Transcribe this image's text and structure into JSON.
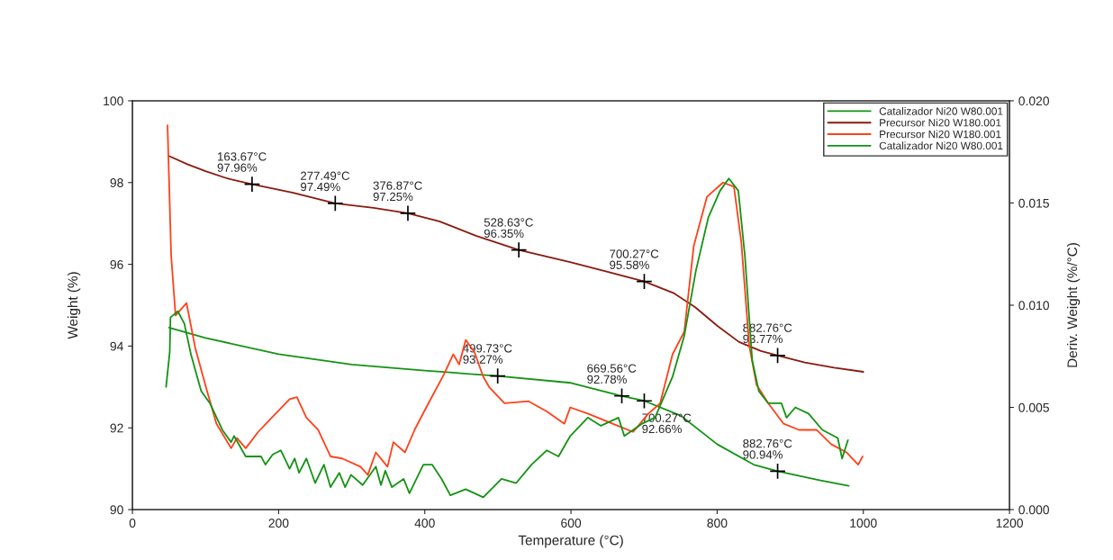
{
  "chart_data": {
    "type": "line",
    "xlabel": "Temperature (°C)",
    "ylabel": "Weight (%)",
    "y2label": "Deriv. Weight (%/°C)",
    "xlim": [
      0,
      1200
    ],
    "xticks": [
      0,
      200,
      400,
      600,
      800,
      1000,
      1200
    ],
    "ylim": [
      90,
      100
    ],
    "yticks": [
      90,
      92,
      94,
      96,
      98,
      100
    ],
    "y2lim": [
      0,
      0.02
    ],
    "y2ticks": [
      {
        "value": 0,
        "label": "0.000"
      },
      {
        "value": 0.005,
        "label": "0.005"
      },
      {
        "value": 0.01,
        "label": "0.010"
      },
      {
        "value": 0.015,
        "label": "0.015"
      },
      {
        "value": 0.02,
        "label": "0.020"
      }
    ],
    "legend": "top right",
    "grid": false,
    "series": [
      {
        "name": "Catalizador Ni20 W80.001",
        "color": "#139313",
        "x": [
          50,
          100,
          200,
          300,
          400,
          499.73,
          600,
          669.56,
          700.27,
          750,
          800,
          850,
          882.76,
          940,
          980
        ],
        "values": [
          94.45,
          94.2,
          93.8,
          93.55,
          93.4,
          93.27,
          93.1,
          92.78,
          92.66,
          92.3,
          91.6,
          91.1,
          90.94,
          90.72,
          90.58
        ]
      },
      {
        "name": "Precursor Ni20 W180.001",
        "color": "#8b1a0e",
        "x": [
          50,
          75,
          100,
          130,
          163.67,
          220,
          277.49,
          330,
          376.87,
          420,
          470,
          528.63,
          600,
          650,
          700.27,
          740,
          770,
          800,
          830,
          860,
          882.76,
          920,
          960,
          1000
        ],
        "values": [
          98.65,
          98.45,
          98.28,
          98.1,
          97.96,
          97.75,
          97.49,
          97.38,
          97.25,
          97.05,
          96.7,
          96.35,
          96.05,
          95.82,
          95.58,
          95.3,
          94.95,
          94.5,
          94.1,
          93.88,
          93.77,
          93.6,
          93.47,
          93.37
        ]
      },
      {
        "name": "Precursor Ni20 W180.001",
        "color": "#ff4019",
        "axis": "y2",
        "x": [
          48,
          53,
          59,
          74,
          86,
          102,
          115,
          135,
          143,
          155,
          172,
          188,
          215,
          225,
          238,
          254,
          271,
          287,
          312,
          322,
          333,
          349,
          357,
          373,
          386,
          402,
          426,
          439,
          447,
          456,
          468,
          480,
          488,
          509,
          542,
          567,
          591,
          599,
          623,
          657,
          685,
          706,
          722,
          739,
          755,
          768,
          786,
          808,
          823,
          833,
          844,
          854,
          870,
          891,
          912,
          936,
          956,
          977,
          993,
          999
        ],
        "values": [
          0.0188,
          0.0124,
          0.0095,
          0.0101,
          0.0079,
          0.0058,
          0.0042,
          0.003,
          0.0035,
          0.003,
          0.0038,
          0.0044,
          0.0054,
          0.0055,
          0.0045,
          0.0039,
          0.0026,
          0.0025,
          0.0021,
          0.0017,
          0.0028,
          0.0021,
          0.0033,
          0.0028,
          0.0039,
          0.005,
          0.0066,
          0.0076,
          0.0071,
          0.0083,
          0.0077,
          0.0065,
          0.006,
          0.0052,
          0.0053,
          0.0048,
          0.0042,
          0.005,
          0.0047,
          0.0042,
          0.0038,
          0.0047,
          0.0052,
          0.0076,
          0.0087,
          0.0129,
          0.0153,
          0.016,
          0.0158,
          0.0131,
          0.008,
          0.0061,
          0.0052,
          0.0042,
          0.0039,
          0.0039,
          0.0032,
          0.0028,
          0.0022,
          0.0026
        ]
      },
      {
        "name": "Catalizador Ni20 W80.001",
        "color": "#139313",
        "axis": "y2",
        "x": [
          46,
          51,
          52,
          62,
          71,
          80,
          94,
          106,
          123,
          135,
          139,
          155,
          176,
          182,
          192,
          203,
          215,
          222,
          228,
          238,
          250,
          262,
          271,
          283,
          291,
          299,
          315,
          333,
          340,
          346,
          355,
          371,
          379,
          398,
          410,
          423,
          435,
          456,
          480,
          505,
          525,
          546,
          567,
          583,
          599,
          623,
          641,
          665,
          673,
          697,
          715,
          739,
          755,
          771,
          788,
          804,
          816,
          829,
          838,
          848,
          857,
          870,
          888,
          895,
          907,
          925,
          944,
          965,
          971,
          979
        ],
        "values": [
          0.006,
          0.0077,
          0.0094,
          0.0097,
          0.0091,
          0.0076,
          0.0058,
          0.0052,
          0.0039,
          0.0033,
          0.0036,
          0.0026,
          0.0026,
          0.0022,
          0.0027,
          0.0029,
          0.002,
          0.0025,
          0.0018,
          0.0025,
          0.0013,
          0.0022,
          0.0011,
          0.0018,
          0.0011,
          0.0017,
          0.0012,
          0.0021,
          0.0012,
          0.0019,
          0.0011,
          0.0015,
          0.0008,
          0.0022,
          0.0022,
          0.0015,
          0.0007,
          0.001,
          0.0006,
          0.0015,
          0.0013,
          0.0022,
          0.0029,
          0.0026,
          0.0036,
          0.0045,
          0.0041,
          0.0045,
          0.0036,
          0.0042,
          0.0045,
          0.0065,
          0.0085,
          0.0117,
          0.0143,
          0.0156,
          0.0162,
          0.0156,
          0.0124,
          0.0073,
          0.0058,
          0.0052,
          0.0052,
          0.0045,
          0.005,
          0.0047,
          0.0039,
          0.0035,
          0.0025,
          0.0034
        ]
      }
    ],
    "annotations": [
      {
        "text": "163.67°C\n97.96%",
        "x": 163.67,
        "y": 97.96
      },
      {
        "text": "277.49°C\n97.49%",
        "x": 277.49,
        "y": 97.49
      },
      {
        "text": "376.87°C\n97.25%",
        "x": 376.87,
        "y": 97.25
      },
      {
        "text": "528.63°C\n96.35%",
        "x": 528.63,
        "y": 96.35
      },
      {
        "text": "700.27°C\n95.58%",
        "x": 700.27,
        "y": 95.58
      },
      {
        "text": "882.76°C\n93.77%",
        "x": 882.76,
        "y": 93.77
      },
      {
        "text": "499.73°C\n93.27%",
        "x": 499.73,
        "y": 93.27
      },
      {
        "text": "669.56°C\n92.78%",
        "x": 669.56,
        "y": 92.78
      },
      {
        "text": "700.27°C\n92.66%",
        "x": 700.27,
        "y": 92.66
      },
      {
        "text": "882.76°C\n90.94%",
        "x": 882.76,
        "y": 90.94
      }
    ]
  }
}
